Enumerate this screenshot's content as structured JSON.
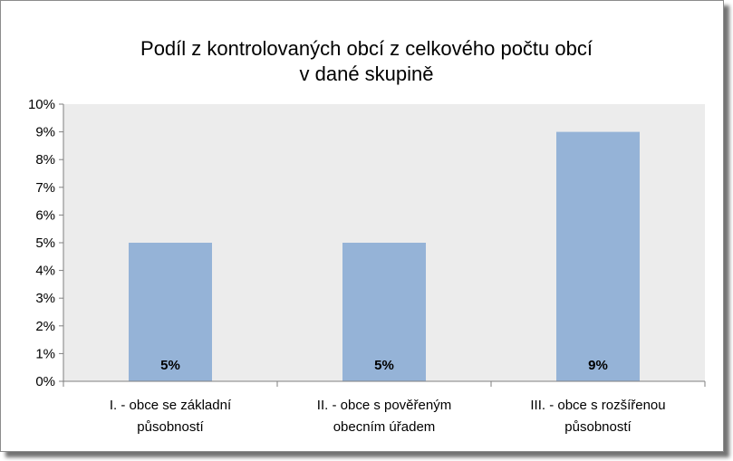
{
  "chart_data": {
    "type": "bar",
    "title_lines": [
      "Podíl z kontrolovaných obcí z celkového počtu obcí",
      "v dané skupině"
    ],
    "categories": [
      [
        "I. - obce se základní",
        "působností"
      ],
      [
        "II. - obce s pověřeným",
        "obecním úřadem"
      ],
      [
        "III. - obce s rozšířenou",
        "působností"
      ]
    ],
    "values": [
      5,
      5,
      9
    ],
    "data_labels": [
      "5%",
      "5%",
      "9%"
    ],
    "y_ticks": [
      "0%",
      "1%",
      "2%",
      "3%",
      "4%",
      "5%",
      "6%",
      "7%",
      "8%",
      "9%",
      "10%"
    ],
    "ylim": [
      0,
      10
    ],
    "grid": false,
    "legend": "none",
    "colors": {
      "bar": "#95b3d7",
      "plot_bg": "#ececec",
      "axis": "#7f7f7f"
    }
  }
}
